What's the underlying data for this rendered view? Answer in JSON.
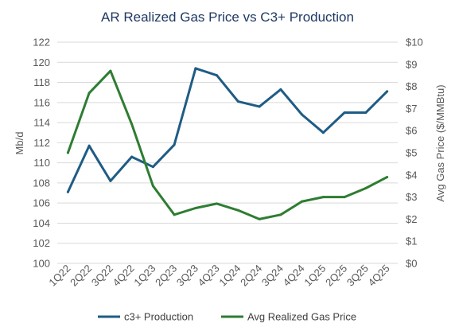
{
  "chart_data": {
    "type": "line",
    "title": "AR Realized Gas Price vs C3+ Production",
    "categories": [
      "1Q22",
      "2Q22",
      "3Q22",
      "4Q22",
      "1Q23",
      "2Q23",
      "3Q23",
      "4Q23",
      "1Q24",
      "2Q24",
      "3Q24",
      "4Q24",
      "1Q25",
      "2Q25",
      "3Q25",
      "4Q25"
    ],
    "y_left": {
      "label": "Mb/d",
      "range": [
        100,
        122
      ],
      "ticks": [
        "100",
        "102",
        "104",
        "106",
        "108",
        "110",
        "112",
        "114",
        "116",
        "118",
        "120",
        "122"
      ]
    },
    "y_right": {
      "label": "Avg Gas Price ($/MMBtu)",
      "range": [
        0,
        10
      ],
      "ticks": [
        "$0",
        "$1",
        "$2",
        "$3",
        "$4",
        "$5",
        "$6",
        "$7",
        "$8",
        "$9",
        "$10"
      ]
    },
    "grid": true,
    "legend_position": "bottom",
    "series": [
      {
        "name": "c3+ Production",
        "axis": "left",
        "color": "#1f5c85",
        "values": [
          107.1,
          111.7,
          108.2,
          110.6,
          109.6,
          111.8,
          119.4,
          118.7,
          116.1,
          115.6,
          117.3,
          114.8,
          113.0,
          115.0,
          115.0,
          117.1
        ]
      },
      {
        "name": "Avg Realized Gas Price",
        "axis": "right",
        "color": "#2e7d32",
        "values": [
          5.0,
          7.7,
          8.7,
          6.3,
          3.5,
          2.2,
          2.5,
          2.7,
          2.4,
          2.0,
          2.2,
          2.8,
          3.0,
          3.0,
          3.4,
          3.9
        ]
      }
    ]
  }
}
